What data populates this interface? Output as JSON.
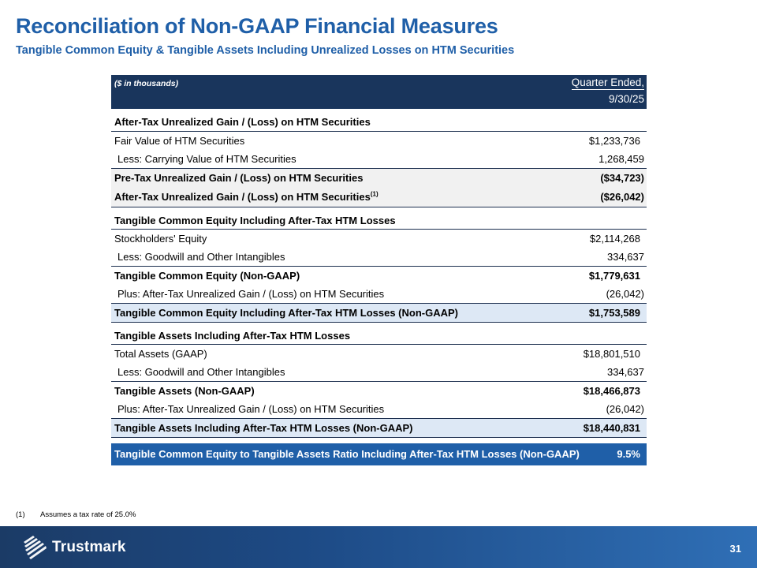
{
  "title": "Reconciliation of Non-GAAP Financial Measures",
  "subtitle": "Tangible Common Equity & Tangible Assets Including Unrealized Losses on HTM Securities",
  "table": {
    "units": "($ in thousands)",
    "period_header": "Quarter Ended,",
    "period_date": "9/30/25",
    "section1": {
      "heading": "After-Tax Unrealized Gain / (Loss) on HTM Securities",
      "rows": [
        {
          "label": "Fair Value of HTM Securities",
          "value": "$1,233,736"
        },
        {
          "label": "Less: Carrying Value of HTM Securities",
          "value": "1,268,459"
        },
        {
          "label": "Pre-Tax Unrealized Gain / (Loss) on HTM Securities",
          "value": "($34,723)"
        },
        {
          "label": "After-Tax Unrealized Gain / (Loss) on HTM Securities",
          "sup": "(1)",
          "value": "($26,042)"
        }
      ]
    },
    "section2": {
      "heading": "Tangible Common Equity Including After-Tax HTM Losses",
      "rows": [
        {
          "label": "Stockholders' Equity",
          "value": "$2,114,268"
        },
        {
          "label": "Less: Goodwill and Other Intangibles",
          "value": "334,637"
        },
        {
          "label": "Tangible Common Equity (Non-GAAP)",
          "value": "$1,779,631"
        },
        {
          "label": "Plus: After-Tax Unrealized Gain / (Loss) on HTM Securities",
          "value": "(26,042)"
        },
        {
          "label": "Tangible Common Equity Including After-Tax HTM Losses (Non-GAAP)",
          "value": "$1,753,589"
        }
      ]
    },
    "section3": {
      "heading": "Tangible Assets Including After-Tax HTM Losses",
      "rows": [
        {
          "label": "Total Assets (GAAP)",
          "value": "$18,801,510"
        },
        {
          "label": "Less: Goodwill and Other Intangibles",
          "value": "334,637"
        },
        {
          "label": "Tangible Assets (Non-GAAP)",
          "value": "$18,466,873"
        },
        {
          "label": "Plus: After-Tax Unrealized Gain / (Loss) on HTM Securities",
          "value": "(26,042)"
        },
        {
          "label": "Tangible Assets Including After-Tax HTM Losses (Non-GAAP)",
          "value": "$18,440,831"
        }
      ]
    },
    "ratio": {
      "label": "Tangible Common Equity to Tangible Assets Ratio Including After-Tax HTM Losses (Non-GAAP)",
      "value": "9.5%"
    }
  },
  "footnote": {
    "marker": "(1)",
    "text": "Assumes a tax rate of 25.0%"
  },
  "footer": {
    "logo_text": "Trustmark",
    "page_number": "31"
  },
  "colors": {
    "title_blue": "#1f5fa8",
    "header_navy": "#19355c",
    "highlight_blue": "#dde8f5",
    "ratio_blue": "#1f5fa8"
  }
}
